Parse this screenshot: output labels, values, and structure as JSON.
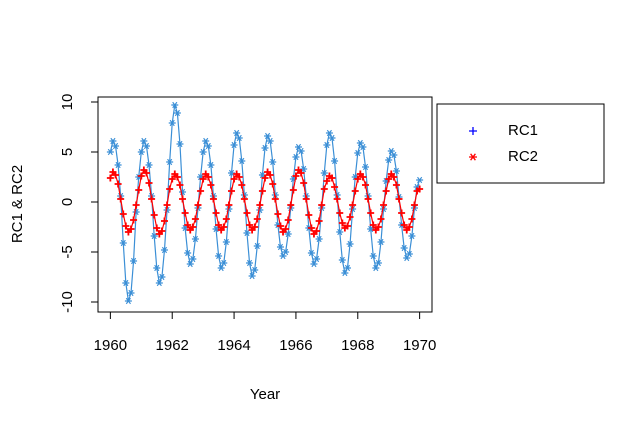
{
  "chart_data": {
    "type": "line",
    "xlabel": "Year",
    "ylabel": "RC1 & RC2",
    "x": [
      1960,
      1960.083,
      1960.167,
      1960.25,
      1960.333,
      1960.417,
      1960.5,
      1960.583,
      1960.667,
      1960.75,
      1960.833,
      1960.917,
      1961,
      1961.083,
      1961.167,
      1961.25,
      1961.333,
      1961.417,
      1961.5,
      1961.583,
      1961.667,
      1961.75,
      1961.833,
      1961.917,
      1962,
      1962.083,
      1962.167,
      1962.25,
      1962.333,
      1962.417,
      1962.5,
      1962.583,
      1962.667,
      1962.75,
      1962.833,
      1962.917,
      1963,
      1963.083,
      1963.167,
      1963.25,
      1963.333,
      1963.417,
      1963.5,
      1963.583,
      1963.667,
      1963.75,
      1963.833,
      1963.917,
      1964,
      1964.083,
      1964.167,
      1964.25,
      1964.333,
      1964.417,
      1964.5,
      1964.583,
      1964.667,
      1964.75,
      1964.833,
      1964.917,
      1965,
      1965.083,
      1965.167,
      1965.25,
      1965.333,
      1965.417,
      1965.5,
      1965.583,
      1965.667,
      1965.75,
      1965.833,
      1965.917,
      1966,
      1966.083,
      1966.167,
      1966.25,
      1966.333,
      1966.417,
      1966.5,
      1966.583,
      1966.667,
      1966.75,
      1966.833,
      1966.917,
      1967,
      1967.083,
      1967.167,
      1967.25,
      1967.333,
      1967.417,
      1967.5,
      1967.583,
      1967.667,
      1967.75,
      1967.833,
      1967.917,
      1968,
      1968.083,
      1968.167,
      1968.25,
      1968.333,
      1968.417,
      1968.5,
      1968.583,
      1968.667,
      1968.75,
      1968.833,
      1968.917,
      1969,
      1969.083,
      1969.167,
      1969.25,
      1969.333,
      1969.417,
      1969.5,
      1969.583,
      1969.667,
      1969.75,
      1969.833,
      1969.917,
      1970
    ],
    "series": [
      {
        "name": "RC1",
        "color": "#3b8fd6",
        "legend_color": "#0000ff",
        "marker": "*",
        "legend_marker": "+",
        "values": [
          5.0,
          6.1,
          5.6,
          3.7,
          0.6,
          -4.1,
          -8.1,
          -9.9,
          -9.1,
          -5.9,
          -1.0,
          2.5,
          5.0,
          6.1,
          5.6,
          3.7,
          0.6,
          -3.4,
          -6.6,
          -8.1,
          -7.5,
          -4.8,
          -0.8,
          4.0,
          7.9,
          9.7,
          8.9,
          5.8,
          1.0,
          -2.6,
          -5.1,
          -6.2,
          -5.7,
          -3.7,
          -0.6,
          2.5,
          5.0,
          6.1,
          5.6,
          3.7,
          0.6,
          -2.7,
          -5.4,
          -6.6,
          -6.1,
          -4.0,
          -0.7,
          2.9,
          5.7,
          6.9,
          6.4,
          4.1,
          0.7,
          -3.1,
          -6.1,
          -7.4,
          -6.8,
          -4.4,
          -0.8,
          2.7,
          5.4,
          6.6,
          6.1,
          4.0,
          0.7,
          -2.3,
          -4.5,
          -5.4,
          -5.0,
          -3.2,
          -0.6,
          2.3,
          4.5,
          5.5,
          5.1,
          3.3,
          0.6,
          -2.6,
          -5.1,
          -6.2,
          -5.7,
          -3.7,
          -0.6,
          2.9,
          5.7,
          6.9,
          6.4,
          4.1,
          0.7,
          -3.0,
          -5.8,
          -7.1,
          -6.6,
          -4.2,
          -0.7,
          2.5,
          4.9,
          5.9,
          5.5,
          3.5,
          0.6,
          -2.7,
          -5.4,
          -6.6,
          -6.1,
          -4.0,
          -0.7,
          2.1,
          4.2,
          5.1,
          4.7,
          3.1,
          0.5,
          -2.3,
          -4.6,
          -5.6,
          -5.2,
          -3.4,
          -0.6,
          1.5,
          2.2
        ]
      },
      {
        "name": "RC2",
        "color": "#ff0000",
        "legend_color": "#ff0000",
        "marker": "+",
        "legend_marker": "*",
        "values": [
          2.4,
          3.0,
          2.7,
          1.8,
          0.3,
          -1.2,
          -2.4,
          -3.0,
          -2.7,
          -1.8,
          -0.3,
          1.2,
          2.6,
          3.2,
          2.9,
          1.9,
          0.3,
          -1.3,
          -2.6,
          -3.2,
          -2.9,
          -1.9,
          -0.3,
          1.3,
          2.3,
          2.8,
          2.5,
          1.7,
          0.3,
          -1.1,
          -2.3,
          -2.8,
          -2.5,
          -1.7,
          -0.3,
          1.1,
          2.3,
          2.8,
          2.5,
          1.7,
          0.3,
          -1.1,
          -2.3,
          -2.8,
          -2.5,
          -1.7,
          -0.3,
          1.1,
          2.3,
          2.8,
          2.5,
          1.7,
          0.3,
          -1.1,
          -2.3,
          -2.8,
          -2.5,
          -1.7,
          -0.3,
          1.1,
          2.4,
          3.0,
          2.7,
          1.8,
          0.3,
          -1.2,
          -2.4,
          -3.0,
          -2.7,
          -1.8,
          -0.3,
          1.2,
          2.6,
          3.2,
          2.9,
          1.9,
          0.3,
          -1.3,
          -2.6,
          -3.2,
          -2.9,
          -1.9,
          -0.3,
          1.3,
          2.1,
          2.6,
          2.4,
          1.5,
          0.3,
          -1.1,
          -2.1,
          -2.6,
          -2.4,
          -1.5,
          -0.3,
          1.1,
          2.3,
          2.8,
          2.5,
          1.7,
          0.3,
          -1.1,
          -2.3,
          -2.8,
          -2.5,
          -1.7,
          -0.3,
          1.1,
          2.3,
          2.8,
          2.5,
          1.7,
          0.3,
          -1.1,
          -2.3,
          -2.8,
          -2.5,
          -1.7,
          -0.3,
          1.1,
          1.3
        ]
      }
    ],
    "xlim": [
      1959.6,
      1970.4
    ],
    "xticks": [
      1960,
      1962,
      1964,
      1966,
      1968,
      1970
    ],
    "ylim": [
      -11,
      10.5
    ],
    "yticks": [
      -10,
      -5,
      0,
      5,
      10
    ],
    "legend": "top-right",
    "grid": false
  }
}
